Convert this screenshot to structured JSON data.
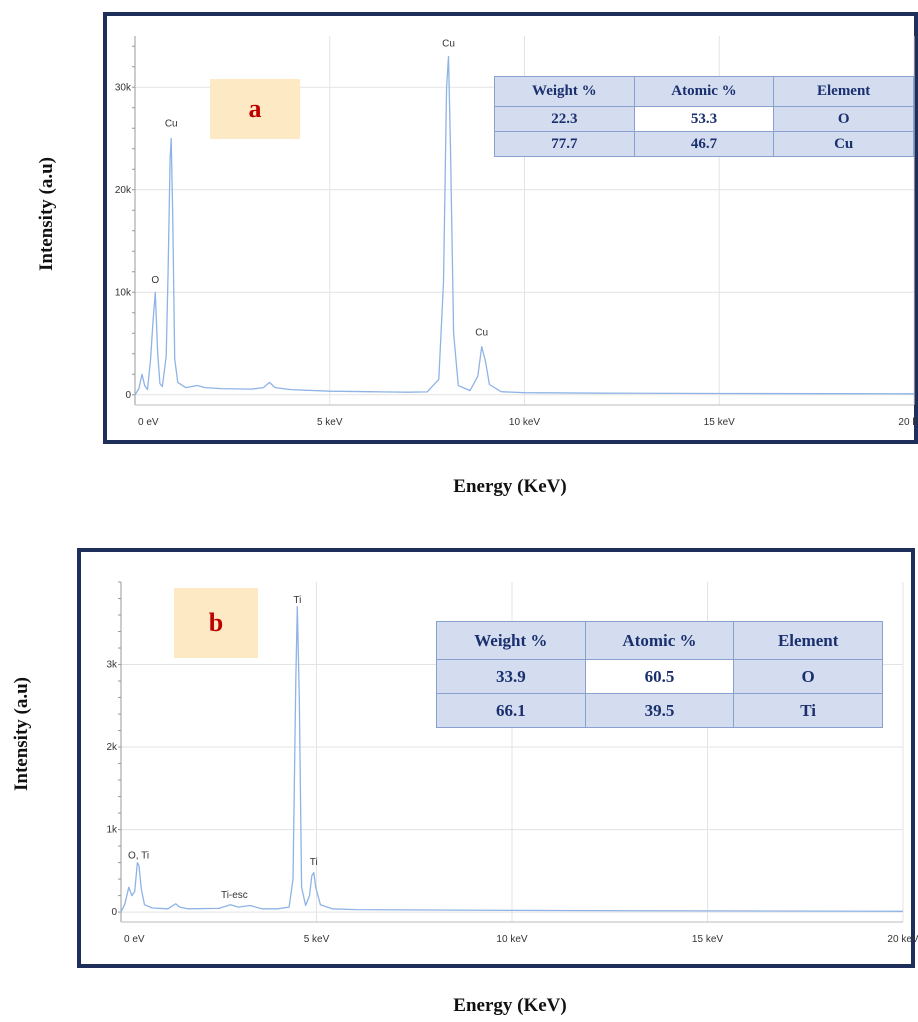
{
  "axis_labels": {
    "y": "Intensity (a.u)",
    "x": "Energy (KeV)"
  },
  "panels": [
    {
      "letter": "a",
      "table": {
        "headers": [
          "Weight %",
          "Atomic %",
          "Element"
        ],
        "rows": [
          [
            "22.3",
            "53.3",
            "O"
          ],
          [
            "77.7",
            "46.7",
            "Cu"
          ]
        ]
      },
      "peak_labels": [
        {
          "text": "O",
          "x": 0.52,
          "y": 10500
        },
        {
          "text": "Cu",
          "x": 0.93,
          "y": 25800
        },
        {
          "text": "Cu",
          "x": 8.05,
          "y": 33600
        },
        {
          "text": "Cu",
          "x": 8.9,
          "y": 5400
        }
      ]
    },
    {
      "letter": "b",
      "table": {
        "headers": [
          "Weight %",
          "Atomic %",
          "Element"
        ],
        "rows": [
          [
            "33.9",
            "60.5",
            "O"
          ],
          [
            "66.1",
            "39.5",
            "Ti"
          ]
        ]
      },
      "peak_labels": [
        {
          "text": "O, Ti",
          "x": 0.45,
          "y": 600
        },
        {
          "text": "Ti-esc",
          "x": 2.9,
          "y": 120
        },
        {
          "text": "Ti",
          "x": 4.51,
          "y": 3700
        },
        {
          "text": "Ti",
          "x": 4.93,
          "y": 520
        }
      ]
    }
  ],
  "chart_data": [
    {
      "type": "line",
      "title": "",
      "xlabel": "Energy (KeV)",
      "ylabel": "Intensity (a.u)",
      "xlim": [
        0,
        20
      ],
      "ylim": [
        -1000,
        35000
      ],
      "x_ticks": [
        0,
        5,
        10,
        15,
        20
      ],
      "x_tick_labels": [
        "0 eV",
        "5 keV",
        "10 keV",
        "15 keV",
        "20 keV"
      ],
      "y_ticks": [
        0,
        10000,
        20000,
        30000
      ],
      "y_tick_labels": [
        "0",
        "10k",
        "20k",
        "30k"
      ],
      "grid": true,
      "line_color": "#8fb3e6",
      "series": [
        {
          "x": [
            0,
            0.1,
            0.18,
            0.25,
            0.32,
            0.4,
            0.46,
            0.52,
            0.58,
            0.64,
            0.7,
            0.76,
            0.8,
            0.85,
            0.9,
            0.93,
            0.97,
            1.02,
            1.1,
            1.3,
            1.6,
            1.8,
            2.2,
            3.0,
            3.3,
            3.45,
            3.6,
            4.0,
            5.0,
            6.0,
            7.0,
            7.5,
            7.8,
            7.92,
            8.0,
            8.05,
            8.1,
            8.18,
            8.3,
            8.6,
            8.8,
            8.9,
            9.0,
            9.1,
            9.4,
            10.0,
            12.0,
            15.0,
            18.0,
            20.0
          ],
          "y": [
            0,
            600,
            2000,
            900,
            500,
            3500,
            7000,
            10000,
            4200,
            1100,
            800,
            2500,
            3800,
            12000,
            23000,
            25000,
            17000,
            3500,
            1200,
            700,
            900,
            700,
            600,
            550,
            700,
            1200,
            700,
            500,
            350,
            300,
            250,
            280,
            1500,
            11000,
            30000,
            33000,
            24000,
            6000,
            900,
            400,
            1800,
            4700,
            3200,
            1000,
            300,
            200,
            150,
            120,
            100,
            90
          ]
        }
      ]
    },
    {
      "type": "line",
      "title": "",
      "xlabel": "Energy (KeV)",
      "ylabel": "Intensity (a.u)",
      "xlim": [
        0,
        20
      ],
      "ylim": [
        -120,
        4000
      ],
      "x_ticks": [
        0,
        5,
        10,
        15,
        20
      ],
      "x_tick_labels": [
        "0 eV",
        "5 keV",
        "10 keV",
        "15 keV",
        "20 keV"
      ],
      "y_ticks": [
        0,
        1000,
        2000,
        3000
      ],
      "y_tick_labels": [
        "0",
        "1k",
        "2k",
        "3k"
      ],
      "grid": true,
      "line_color": "#8fb3e6",
      "series": [
        {
          "x": [
            0,
            0.1,
            0.2,
            0.28,
            0.35,
            0.42,
            0.46,
            0.52,
            0.6,
            0.8,
            1.2,
            1.4,
            1.5,
            1.7,
            2.5,
            2.8,
            3.0,
            3.3,
            3.6,
            4.0,
            4.3,
            4.4,
            4.47,
            4.51,
            4.56,
            4.62,
            4.72,
            4.82,
            4.88,
            4.93,
            4.98,
            5.1,
            5.4,
            6.0,
            8.0,
            10.0,
            12.0,
            15.0,
            18.0,
            20.0
          ],
          "y": [
            0,
            100,
            300,
            200,
            250,
            600,
            560,
            280,
            90,
            50,
            40,
            100,
            60,
            40,
            45,
            90,
            60,
            80,
            40,
            40,
            60,
            400,
            2800,
            3700,
            2600,
            300,
            80,
            200,
            440,
            480,
            300,
            90,
            40,
            30,
            25,
            20,
            18,
            15,
            12,
            10
          ]
        }
      ]
    }
  ]
}
